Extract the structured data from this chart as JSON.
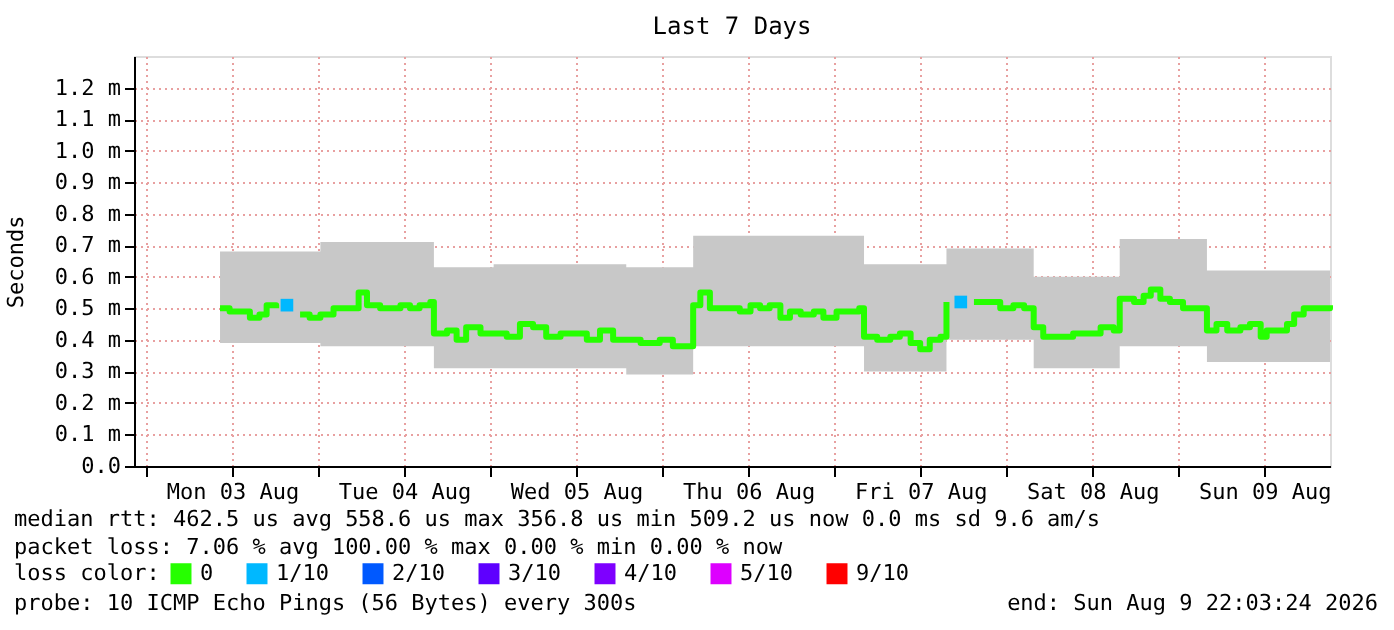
{
  "chart_data": {
    "type": "step",
    "title": "Last 7 Days",
    "ylabel": "Seconds",
    "x": [
      "2026-08-03T10:20",
      "2026-08-03T11:40",
      "2026-08-03T13:10",
      "2026-08-03T14:30",
      "2026-08-03T15:50",
      "2026-08-03T16:50",
      "2026-08-03T18:10",
      "2026-08-03T19:40",
      "2026-08-03T21:30",
      "2026-08-03T22:50",
      "2026-08-04T00:20",
      "2026-08-04T02:10",
      "2026-08-04T04:00",
      "2026-08-04T05:40",
      "2026-08-04T06:50",
      "2026-08-04T08:40",
      "2026-08-04T10:30",
      "2026-08-04T11:30",
      "2026-08-04T12:50",
      "2026-08-04T14:10",
      "2026-08-04T15:40",
      "2026-08-04T16:10",
      "2026-08-04T18:00",
      "2026-08-04T19:20",
      "2026-08-04T20:40",
      "2026-08-04T22:40",
      "2026-08-05T00:30",
      "2026-08-05T02:20",
      "2026-08-05T04:10",
      "2026-08-05T06:00",
      "2026-08-05T07:50",
      "2026-08-05T09:50",
      "2026-08-05T11:40",
      "2026-08-05T13:30",
      "2026-08-05T15:20",
      "2026-08-05T17:10",
      "2026-08-05T19:00",
      "2026-08-05T21:00",
      "2026-08-05T23:40",
      "2026-08-06T01:30",
      "2026-08-06T03:30",
      "2026-08-06T04:20",
      "2026-08-06T05:20",
      "2026-08-06T06:40",
      "2026-08-06T09:00",
      "2026-08-06T10:50",
      "2026-08-06T12:20",
      "2026-08-06T13:40",
      "2026-08-06T15:00",
      "2026-08-06T16:30",
      "2026-08-06T17:50",
      "2026-08-06T19:20",
      "2026-08-06T21:10",
      "2026-08-06T22:30",
      "2026-08-07T00:20",
      "2026-08-07T02:10",
      "2026-08-07T03:30",
      "2026-08-07T04:10",
      "2026-08-07T06:00",
      "2026-08-07T07:50",
      "2026-08-07T09:10",
      "2026-08-07T10:40",
      "2026-08-07T12:00",
      "2026-08-07T13:20",
      "2026-08-07T14:50",
      "2026-08-07T15:40",
      "2026-08-07T17:40",
      "2026-08-07T19:30",
      "2026-08-07T22:10",
      "2026-08-07T23:10",
      "2026-08-08T01:00",
      "2026-08-08T02:30",
      "2026-08-08T03:50",
      "2026-08-08T05:10",
      "2026-08-08T07:30",
      "2026-08-08T09:20",
      "2026-08-08T11:20",
      "2026-08-08T13:10",
      "2026-08-08T15:00",
      "2026-08-08T15:50",
      "2026-08-08T17:50",
      "2026-08-08T19:10",
      "2026-08-08T20:10",
      "2026-08-08T21:30",
      "2026-08-08T22:50",
      "2026-08-09T00:40",
      "2026-08-09T02:40",
      "2026-08-09T04:00",
      "2026-08-09T05:20",
      "2026-08-09T06:50",
      "2026-08-09T08:40",
      "2026-08-09T10:00",
      "2026-08-09T11:30",
      "2026-08-09T12:20",
      "2026-08-09T14:10",
      "2026-08-09T15:10",
      "2026-08-09T16:10",
      "2026-08-09T17:30",
      "2026-08-09T19:20",
      "2026-08-09T21:10"
    ],
    "series": [
      {
        "name": "0",
        "color": "#26ff00",
        "values": [
          0.5,
          0.49,
          0.49,
          0.47,
          0.48,
          0.51,
          0.5,
          null,
          0.48,
          0.47,
          0.48,
          0.5,
          0.5,
          0.55,
          0.51,
          0.5,
          0.5,
          0.51,
          0.5,
          0.51,
          0.52,
          0.42,
          0.43,
          0.4,
          0.44,
          0.42,
          0.42,
          0.41,
          0.45,
          0.44,
          0.41,
          0.42,
          0.42,
          0.4,
          0.43,
          0.4,
          0.4,
          0.39,
          0.4,
          0.38,
          0.38,
          0.51,
          0.55,
          0.5,
          0.5,
          0.49,
          0.51,
          0.5,
          0.51,
          0.47,
          0.49,
          0.48,
          0.49,
          0.47,
          0.49,
          0.49,
          0.5,
          0.41,
          0.4,
          0.41,
          0.42,
          0.39,
          0.37,
          0.4,
          0.41,
          0.52,
          null,
          0.52,
          0.52,
          0.5,
          0.51,
          0.5,
          0.44,
          0.41,
          0.41,
          0.42,
          0.42,
          0.44,
          0.43,
          0.53,
          0.52,
          0.54,
          0.56,
          0.53,
          0.52,
          0.5,
          0.5,
          0.43,
          0.45,
          0.43,
          0.44,
          0.45,
          0.41,
          0.43,
          0.43,
          0.45,
          0.48,
          0.5,
          0.5,
          0.51
        ],
        "lower": [
          0.39,
          0.39,
          0.39,
          0.39,
          0.39,
          0.39,
          0.39,
          0.39,
          0.39,
          0.39,
          0.38,
          0.38,
          0.38,
          0.38,
          0.38,
          0.38,
          0.38,
          0.38,
          0.38,
          0.38,
          0.38,
          0.31,
          0.31,
          0.31,
          0.31,
          0.31,
          0.31,
          0.31,
          0.31,
          0.31,
          0.31,
          0.31,
          0.31,
          0.31,
          0.31,
          0.31,
          0.29,
          0.29,
          0.29,
          0.29,
          0.29,
          0.38,
          0.38,
          0.38,
          0.38,
          0.38,
          0.38,
          0.38,
          0.38,
          0.38,
          0.38,
          0.38,
          0.38,
          0.38,
          0.38,
          0.38,
          0.38,
          0.3,
          0.3,
          0.3,
          0.3,
          0.3,
          0.3,
          0.3,
          0.3,
          0.4,
          0.4,
          0.4,
          0.4,
          0.4,
          0.4,
          0.4,
          0.31,
          0.31,
          0.31,
          0.31,
          0.31,
          0.31,
          0.31,
          0.38,
          0.38,
          0.38,
          0.38,
          0.38,
          0.38,
          0.38,
          0.38,
          0.33,
          0.33,
          0.33,
          0.33,
          0.33,
          0.33,
          0.33,
          0.33,
          0.33,
          0.33,
          0.33,
          0.33,
          0.33
        ],
        "upper": [
          0.68,
          0.68,
          0.68,
          0.68,
          0.68,
          0.68,
          0.68,
          0.68,
          0.68,
          0.68,
          0.71,
          0.71,
          0.71,
          0.71,
          0.71,
          0.71,
          0.71,
          0.71,
          0.71,
          0.71,
          0.71,
          0.63,
          0.63,
          0.63,
          0.63,
          0.63,
          0.64,
          0.64,
          0.64,
          0.64,
          0.64,
          0.64,
          0.64,
          0.64,
          0.64,
          0.64,
          0.63,
          0.63,
          0.63,
          0.63,
          0.63,
          0.73,
          0.73,
          0.73,
          0.73,
          0.73,
          0.73,
          0.73,
          0.73,
          0.73,
          0.73,
          0.73,
          0.73,
          0.73,
          0.73,
          0.73,
          0.73,
          0.64,
          0.64,
          0.64,
          0.64,
          0.64,
          0.64,
          0.64,
          0.64,
          0.69,
          0.69,
          0.69,
          0.69,
          0.69,
          0.69,
          0.69,
          0.6,
          0.6,
          0.6,
          0.6,
          0.6,
          0.6,
          0.6,
          0.72,
          0.72,
          0.72,
          0.72,
          0.72,
          0.72,
          0.72,
          0.72,
          0.62,
          0.62,
          0.62,
          0.62,
          0.62,
          0.62,
          0.62,
          0.62,
          0.62,
          0.62,
          0.62,
          0.62,
          0.62
        ]
      },
      {
        "name": "1/10",
        "type": "scatter",
        "marker": "square",
        "color": "#00b8ff",
        "x": [
          "2026-08-03T19:40",
          "2026-08-07T17:40"
        ],
        "values": [
          0.51,
          0.52
        ]
      },
      {
        "name": "2/10",
        "type": "scatter",
        "marker": "square",
        "color": "#0059ff",
        "values": [
          null,
          null,
          null,
          null,
          null,
          null,
          null,
          null,
          null,
          null,
          null,
          null,
          null,
          null,
          null,
          null,
          null,
          null,
          null,
          null,
          null,
          null,
          null,
          null,
          null,
          null,
          null,
          null,
          null,
          null,
          null,
          null,
          null,
          null,
          null,
          null,
          null,
          null,
          null,
          null,
          null,
          null,
          null,
          null,
          null,
          null,
          null,
          null,
          null,
          null,
          null,
          null,
          null,
          null,
          null,
          null,
          null,
          null,
          null,
          null,
          null,
          null,
          null,
          null,
          null,
          null,
          null,
          null,
          null,
          null,
          null,
          null,
          null,
          null,
          null,
          null,
          null,
          null,
          null,
          null,
          null,
          null,
          null,
          null,
          null,
          null,
          null,
          null,
          null,
          null,
          null,
          null,
          null,
          null,
          null,
          null,
          null,
          null,
          null,
          null
        ]
      },
      {
        "name": "3/10",
        "type": "scatter",
        "marker": "square",
        "color": "#5e00ff",
        "values": [
          null,
          null,
          null,
          null,
          null,
          null,
          null,
          null,
          null,
          null,
          null,
          null,
          null,
          null,
          null,
          null,
          null,
          null,
          null,
          null,
          null,
          null,
          null,
          null,
          null,
          null,
          null,
          null,
          null,
          null,
          null,
          null,
          null,
          null,
          null,
          null,
          null,
          null,
          null,
          null,
          null,
          null,
          null,
          null,
          null,
          null,
          null,
          null,
          null,
          null,
          null,
          null,
          null,
          null,
          null,
          null,
          null,
          null,
          null,
          null,
          null,
          null,
          null,
          null,
          null,
          null,
          null,
          null,
          null,
          null,
          null,
          null,
          null,
          null,
          null,
          null,
          null,
          null,
          null,
          null,
          null,
          null,
          null,
          null,
          null,
          null,
          null,
          null,
          null,
          null,
          null,
          null,
          null,
          null,
          null,
          null,
          null,
          null,
          null,
          null
        ]
      },
      {
        "name": "4/10",
        "type": "scatter",
        "marker": "square",
        "color": "#7e00ff",
        "values": [
          null,
          null,
          null,
          null,
          null,
          null,
          null,
          null,
          null,
          null,
          null,
          null,
          null,
          null,
          null,
          null,
          null,
          null,
          null,
          null,
          null,
          null,
          null,
          null,
          null,
          null,
          null,
          null,
          null,
          null,
          null,
          null,
          null,
          null,
          null,
          null,
          null,
          null,
          null,
          null,
          null,
          null,
          null,
          null,
          null,
          null,
          null,
          null,
          null,
          null,
          null,
          null,
          null,
          null,
          null,
          null,
          null,
          null,
          null,
          null,
          null,
          null,
          null,
          null,
          null,
          null,
          null,
          null,
          null,
          null,
          null,
          null,
          null,
          null,
          null,
          null,
          null,
          null,
          null,
          null,
          null,
          null,
          null,
          null,
          null,
          null,
          null,
          null,
          null,
          null,
          null,
          null,
          null,
          null,
          null,
          null,
          null,
          null,
          null,
          null
        ]
      },
      {
        "name": "5/10",
        "type": "scatter",
        "marker": "square",
        "color": "#dd00ff",
        "values": [
          null,
          null,
          null,
          null,
          null,
          null,
          null,
          null,
          null,
          null,
          null,
          null,
          null,
          null,
          null,
          null,
          null,
          null,
          null,
          null,
          null,
          null,
          null,
          null,
          null,
          null,
          null,
          null,
          null,
          null,
          null,
          null,
          null,
          null,
          null,
          null,
          null,
          null,
          null,
          null,
          null,
          null,
          null,
          null,
          null,
          null,
          null,
          null,
          null,
          null,
          null,
          null,
          null,
          null,
          null,
          null,
          null,
          null,
          null,
          null,
          null,
          null,
          null,
          null,
          null,
          null,
          null,
          null,
          null,
          null,
          null,
          null,
          null,
          null,
          null,
          null,
          null,
          null,
          null,
          null,
          null,
          null,
          null,
          null,
          null,
          null,
          null,
          null,
          null,
          null,
          null,
          null,
          null,
          null,
          null,
          null,
          null,
          null,
          null,
          null
        ]
      },
      {
        "name": "9/10",
        "type": "scatter",
        "marker": "square",
        "color": "#ff0000",
        "values": [
          null,
          null,
          null,
          null,
          null,
          null,
          null,
          null,
          null,
          null,
          null,
          null,
          null,
          null,
          null,
          null,
          null,
          null,
          null,
          null,
          null,
          null,
          null,
          null,
          null,
          null,
          null,
          null,
          null,
          null,
          null,
          null,
          null,
          null,
          null,
          null,
          null,
          null,
          null,
          null,
          null,
          null,
          null,
          null,
          null,
          null,
          null,
          null,
          null,
          null,
          null,
          null,
          null,
          null,
          null,
          null,
          null,
          null,
          null,
          null,
          null,
          null,
          null,
          null,
          null,
          null,
          null,
          null,
          null,
          null,
          null,
          null,
          null,
          null,
          null,
          null,
          null,
          null,
          null,
          null,
          null,
          null,
          null,
          null,
          null,
          null,
          null,
          null,
          null,
          null,
          null,
          null,
          null,
          null,
          null,
          null,
          null,
          null,
          null,
          null
        ]
      }
    ],
    "legend_title": "loss color:",
    "legend": "bottom",
    "xlim": [
      "2026-08-02T22:20",
      "2026-08-09T21:10"
    ],
    "xticks": [
      {
        "value": "2026-08-03T00:00",
        "label": null
      },
      {
        "value": "2026-08-03T12:00",
        "label": "Mon 03 Aug"
      },
      {
        "value": "2026-08-04T00:00",
        "label": null
      },
      {
        "value": "2026-08-04T12:00",
        "label": "Tue 04 Aug"
      },
      {
        "value": "2026-08-05T00:00",
        "label": null
      },
      {
        "value": "2026-08-05T12:00",
        "label": "Wed 05 Aug"
      },
      {
        "value": "2026-08-06T00:00",
        "label": null
      },
      {
        "value": "2026-08-06T12:00",
        "label": "Thu 06 Aug"
      },
      {
        "value": "2026-08-07T00:00",
        "label": null
      },
      {
        "value": "2026-08-07T12:00",
        "label": "Fri 07 Aug"
      },
      {
        "value": "2026-08-08T00:00",
        "label": null
      },
      {
        "value": "2026-08-08T12:00",
        "label": "Sat 08 Aug"
      },
      {
        "value": "2026-08-09T00:00",
        "label": null
      },
      {
        "value": "2026-08-09T12:00",
        "label": "Sun 09 Aug"
      }
    ],
    "ylim": [
      0,
      1.3
    ],
    "yticks": [
      {
        "value": 0,
        "label": "0.0"
      },
      {
        "value": 0.1,
        "label": "0.1 m"
      },
      {
        "value": 0.2,
        "label": "0.2 m"
      },
      {
        "value": 0.3,
        "label": "0.3 m"
      },
      {
        "value": 0.4,
        "label": "0.4 m"
      },
      {
        "value": 0.5,
        "label": "0.5 m"
      },
      {
        "value": 0.6,
        "label": "0.6 m"
      },
      {
        "value": 0.7,
        "label": "0.7 m"
      },
      {
        "value": 0.8,
        "label": "0.8 m"
      },
      {
        "value": 0.9,
        "label": "0.9 m"
      },
      {
        "value": 1.0,
        "label": "1.0 m"
      },
      {
        "value": 1.1,
        "label": "1.1 m"
      },
      {
        "value": 1.2,
        "label": "1.2 m"
      }
    ],
    "grid": true,
    "annotations": [
      "median rtt:  462.5 us avg  558.6 us max  356.8 us min  509.2 us now  0.0 ms sd  9.6  am/s",
      "packet loss: 7.06 % avg  100.00 % max  0.00 % min  0.00 % now",
      "probe:       10 ICMP Echo Pings (56 Bytes) every 300s",
      "end: Sun Aug  9 22:03:24 2026"
    ]
  }
}
